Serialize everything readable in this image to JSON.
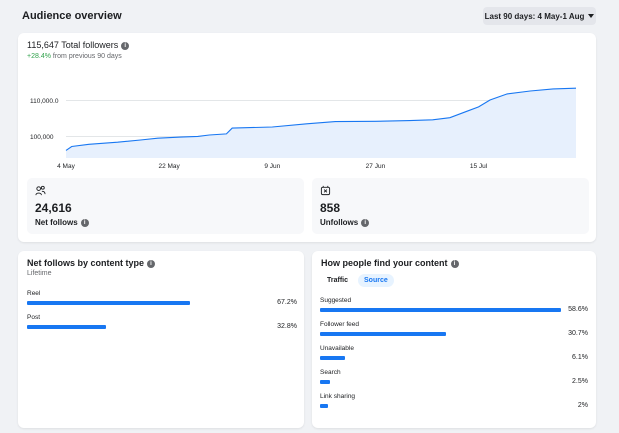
{
  "header": {
    "title": "Audience overview",
    "date_range": "Last 90 days: 4 May-1 Aug"
  },
  "followers": {
    "total_label": "115,647 Total followers",
    "change_value": "+28.4%",
    "change_text": "from previous 90 days"
  },
  "chart_data": {
    "type": "area",
    "x_ticks": [
      "4 May",
      "22 May",
      "9 Jun",
      "27 Jun",
      "15 Jul"
    ],
    "y_ticks": [
      "110,000.0",
      "100,000"
    ],
    "x": [
      "4 May",
      "5 May",
      "8 May",
      "13 May",
      "17 May",
      "20 May",
      "24 May",
      "27 May",
      "29 May",
      "1 Jun",
      "2 Jun",
      "9 Jun",
      "15 Jun",
      "20 Jun",
      "27 Jun",
      "3 Jul",
      "7 Jul",
      "10 Jul",
      "13 Jul",
      "15 Jul",
      "17 Jul",
      "20 Jul",
      "24 Jul",
      "28 Jul",
      "1 Aug"
    ],
    "values": [
      96100,
      97200,
      97800,
      98400,
      99000,
      99500,
      99800,
      100000,
      100400,
      100700,
      102300,
      102600,
      103500,
      104100,
      104200,
      104400,
      104600,
      105200,
      107000,
      108200,
      110100,
      111800,
      112600,
      113200,
      113400
    ],
    "ylim": [
      94000,
      116500
    ],
    "colors": {
      "line": "#1877f2",
      "fill": "#e7f0fd"
    }
  },
  "stats": [
    {
      "icon": "people-icon",
      "value": "24,616",
      "label": "Net follows"
    },
    {
      "icon": "unfollow-icon",
      "value": "858",
      "label": "Unfollows"
    }
  ],
  "net_follows": {
    "title": "Net follows by content type",
    "subtitle": "Lifetime",
    "items": [
      {
        "label": "Reel",
        "value": "67.2%",
        "pct": 67.2
      },
      {
        "label": "Post",
        "value": "32.8%",
        "pct": 32.8
      }
    ]
  },
  "find_content": {
    "title": "How people find your content",
    "tabs": [
      "Traffic",
      "Source"
    ],
    "active_tab": "Source",
    "items": [
      {
        "label": "Suggested",
        "value": "58.6%",
        "pct": 58.6
      },
      {
        "label": "Follower feed",
        "value": "30.7%",
        "pct": 30.7
      },
      {
        "label": "Unavailable",
        "value": "6.1%",
        "pct": 6.1
      },
      {
        "label": "Search",
        "value": "2.5%",
        "pct": 2.5
      },
      {
        "label": "Link sharing",
        "value": "2%",
        "pct": 2.0
      }
    ]
  }
}
